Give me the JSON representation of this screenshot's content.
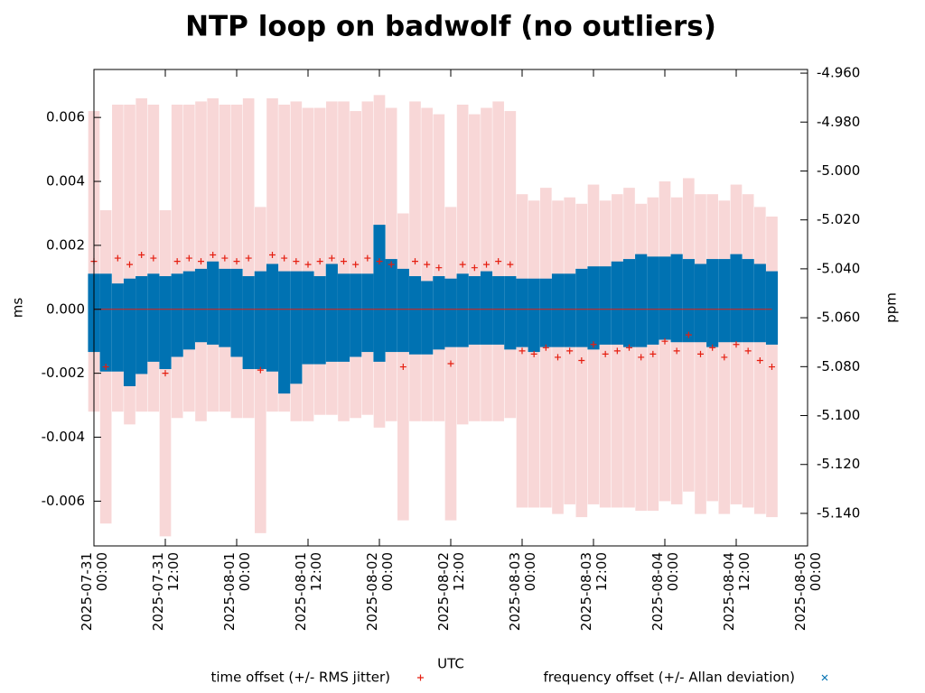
{
  "chart_data": {
    "type": "scatter",
    "title": "NTP loop on badwolf (no outliers)",
    "x_label": "UTC",
    "y_label": "ms",
    "y2_label": "ppm",
    "xlim": [
      "2025-07-31 00:00",
      "2025-08-05 00:00"
    ],
    "xticks": [
      "2025-07-31 00:00",
      "2025-07-31 12:00",
      "2025-08-01 00:00",
      "2025-08-01 12:00",
      "2025-08-02 00:00",
      "2025-08-02 12:00",
      "2025-08-03 00:00",
      "2025-08-03 12:00",
      "2025-08-04 00:00",
      "2025-08-04 12:00",
      "2025-08-05 00:00"
    ],
    "ylim": [
      -0.0074,
      0.0075
    ],
    "yticks": [
      -0.006,
      -0.004,
      -0.002,
      {
        "value": 0,
        "label": "0.000"
      },
      0.002,
      0.004,
      0.006
    ],
    "y2lim": [
      -5.1533,
      -4.9585
    ],
    "y2ticks": [
      {
        "value": -5.14,
        "label": "-5.140"
      },
      {
        "value": -5.12,
        "label": "-5.120"
      },
      {
        "value": -5.1,
        "label": "-5.100"
      },
      {
        "value": -5.08,
        "label": "-5.080"
      },
      {
        "value": -5.06,
        "label": "-5.060"
      },
      {
        "value": -5.04,
        "label": "-5.040"
      },
      {
        "value": -5.02,
        "label": "-5.020"
      },
      {
        "value": -5,
        "label": "-5.000"
      },
      {
        "value": -4.98,
        "label": "-4.980"
      },
      {
        "value": -4.96,
        "label": "-4.960"
      }
    ],
    "x": [
      "2025-07-31 00:00",
      "2025-07-31 02:00",
      "2025-07-31 04:00",
      "2025-07-31 06:00",
      "2025-07-31 08:00",
      "2025-07-31 10:00",
      "2025-07-31 12:00",
      "2025-07-31 14:00",
      "2025-07-31 16:00",
      "2025-07-31 18:00",
      "2025-07-31 20:00",
      "2025-07-31 22:00",
      "2025-08-01 00:00",
      "2025-08-01 02:00",
      "2025-08-01 04:00",
      "2025-08-01 06:00",
      "2025-08-01 08:00",
      "2025-08-01 10:00",
      "2025-08-01 12:00",
      "2025-08-01 14:00",
      "2025-08-01 16:00",
      "2025-08-01 18:00",
      "2025-08-01 20:00",
      "2025-08-01 22:00",
      "2025-08-02 00:00",
      "2025-08-02 02:00",
      "2025-08-02 04:00",
      "2025-08-02 06:00",
      "2025-08-02 08:00",
      "2025-08-02 10:00",
      "2025-08-02 12:00",
      "2025-08-02 14:00",
      "2025-08-02 16:00",
      "2025-08-02 18:00",
      "2025-08-02 20:00",
      "2025-08-02 22:00",
      "2025-08-03 00:00",
      "2025-08-03 02:00",
      "2025-08-03 04:00",
      "2025-08-03 06:00",
      "2025-08-03 08:00",
      "2025-08-03 10:00",
      "2025-08-03 12:00",
      "2025-08-03 14:00",
      "2025-08-03 16:00",
      "2025-08-03 18:00",
      "2025-08-03 20:00",
      "2025-08-03 22:00",
      "2025-08-04 00:00",
      "2025-08-04 02:00",
      "2025-08-04 04:00",
      "2025-08-04 06:00",
      "2025-08-04 08:00",
      "2025-08-04 10:00",
      "2025-08-04 12:00",
      "2025-08-04 14:00",
      "2025-08-04 16:00",
      "2025-08-04 18:00"
    ],
    "series": [
      {
        "name": "time offset (+/- RMS jitter)",
        "color": "#e51e10",
        "error_color": "#f6c9c9",
        "marker": "+",
        "values": [
          0.0015,
          -0.0018,
          0.0016,
          0.0014,
          0.0017,
          0.0016,
          -0.002,
          0.0015,
          0.0016,
          0.0015,
          0.0017,
          0.0016,
          0.0015,
          0.0016,
          -0.0019,
          0.0017,
          0.0016,
          0.0015,
          0.0014,
          0.0015,
          0.0016,
          0.0015,
          0.0014,
          0.0016,
          0.0015,
          0.0014,
          -0.0018,
          0.0015,
          0.0014,
          0.0013,
          -0.0017,
          0.0014,
          0.0013,
          0.0014,
          0.0015,
          0.0014,
          -0.0013,
          -0.0014,
          -0.0012,
          -0.0015,
          -0.0013,
          -0.0016,
          -0.0011,
          -0.0014,
          -0.0013,
          -0.0012,
          -0.0015,
          -0.0014,
          -0.001,
          -0.0013,
          -0.0008,
          -0.0014,
          -0.0012,
          -0.0015,
          -0.0011,
          -0.0013,
          -0.0016,
          -0.0018
        ],
        "errors": [
          0.0047,
          0.0049,
          0.0048,
          0.005,
          0.0049,
          0.0048,
          0.0051,
          0.0049,
          0.0048,
          0.005,
          0.0049,
          0.0048,
          0.0049,
          0.005,
          0.0051,
          0.0049,
          0.0048,
          0.005,
          0.0049,
          0.0048,
          0.0049,
          0.005,
          0.0048,
          0.0049,
          0.0052,
          0.0049,
          0.0048,
          0.005,
          0.0049,
          0.0048,
          0.0049,
          0.005,
          0.0048,
          0.0049,
          0.005,
          0.0048,
          0.0049,
          0.0048,
          0.005,
          0.0049,
          0.0048,
          0.0049,
          0.005,
          0.0048,
          0.0049,
          0.005,
          0.0048,
          0.0049,
          0.005,
          0.0048,
          0.0049,
          0.005,
          0.0048,
          0.0049,
          0.005,
          0.0049,
          0.0048,
          0.0047
        ]
      },
      {
        "name": "frequency offset (+/- Allan deviation)",
        "color": "#0072b2",
        "marker": "x",
        "axis": "y2",
        "values": [
          -5.058,
          -5.062,
          -5.064,
          -5.066,
          -5.063,
          -5.06,
          -5.062,
          -5.059,
          -5.057,
          -5.055,
          -5.054,
          -5.056,
          -5.058,
          -5.062,
          -5.061,
          -5.06,
          -5.066,
          -5.064,
          -5.06,
          -5.061,
          -5.058,
          -5.06,
          -5.059,
          -5.058,
          -5.05,
          -5.055,
          -5.057,
          -5.059,
          -5.06,
          -5.058,
          -5.058,
          -5.057,
          -5.057,
          -5.056,
          -5.057,
          -5.058,
          -5.058,
          -5.059,
          -5.058,
          -5.057,
          -5.057,
          -5.056,
          -5.056,
          -5.055,
          -5.054,
          -5.054,
          -5.053,
          -5.053,
          -5.052,
          -5.052,
          -5.053,
          -5.054,
          -5.054,
          -5.053,
          -5.052,
          -5.053,
          -5.054,
          -5.056
        ],
        "errors": [
          0.016,
          0.02,
          0.018,
          0.022,
          0.02,
          0.018,
          0.019,
          0.017,
          0.016,
          0.015,
          0.017,
          0.016,
          0.018,
          0.019,
          0.02,
          0.022,
          0.025,
          0.023,
          0.019,
          0.018,
          0.02,
          0.018,
          0.017,
          0.016,
          0.028,
          0.019,
          0.017,
          0.016,
          0.015,
          0.015,
          0.014,
          0.015,
          0.014,
          0.015,
          0.014,
          0.015,
          0.014,
          0.015,
          0.014,
          0.015,
          0.015,
          0.016,
          0.017,
          0.016,
          0.017,
          0.018,
          0.019,
          0.018,
          0.017,
          0.018,
          0.017,
          0.016,
          0.018,
          0.017,
          0.018,
          0.017,
          0.016,
          0.015
        ]
      }
    ]
  }
}
